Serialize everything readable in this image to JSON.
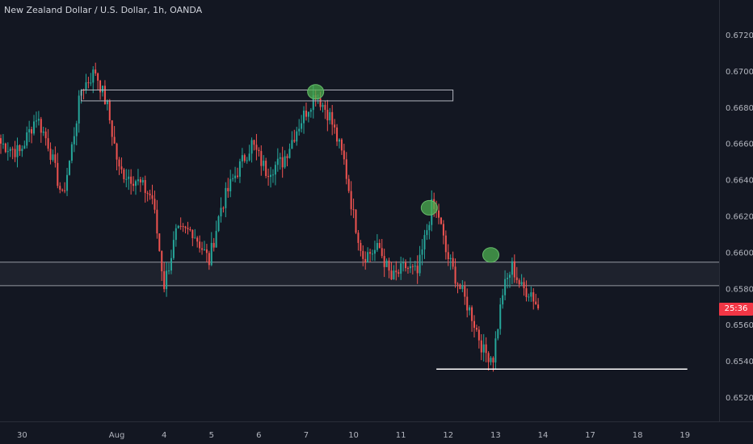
{
  "header": {
    "title": "New Zealand Dollar / U.S. Dollar, 1h, OANDA"
  },
  "current_price": {
    "label": "25:36",
    "price": 0.6569,
    "color": "#f23645"
  },
  "colors": {
    "up": "#26a69a",
    "down": "#ef5350",
    "background": "#131722",
    "axis_text": "#b2b5be",
    "zone_fill": "#1e222d",
    "marker": "#4caf50"
  },
  "chart_data": {
    "type": "candlestick",
    "title": "New Zealand Dollar / U.S. Dollar, 1h, OANDA",
    "ylim": [
      0.651,
      0.6734
    ],
    "y_ticks": [
      "0.67200",
      "0.67000",
      "0.66800",
      "0.66600",
      "0.66400",
      "0.66200",
      "0.66000",
      "0.65800",
      "0.65600",
      "0.65400",
      "0.65200"
    ],
    "y_tick_values": [
      0.672,
      0.67,
      0.668,
      0.666,
      0.664,
      0.662,
      0.66,
      0.658,
      0.656,
      0.654,
      0.652
    ],
    "x_ticks": [
      "30",
      "Aug",
      "4",
      "5",
      "6",
      "7",
      "10",
      "11",
      "12",
      "13",
      "14",
      "17",
      "18",
      "19"
    ],
    "x_tick_bar_index": [
      9,
      49,
      69,
      89,
      109,
      129,
      149,
      169,
      189,
      209,
      229,
      249,
      269,
      289
    ],
    "anchor_path": [
      [
        0,
        0.666
      ],
      [
        8,
        0.6655
      ],
      [
        15,
        0.6675
      ],
      [
        20,
        0.666
      ],
      [
        26,
        0.663
      ],
      [
        29,
        0.665
      ],
      [
        34,
        0.669
      ],
      [
        40,
        0.67
      ],
      [
        45,
        0.668
      ],
      [
        50,
        0.6645
      ],
      [
        57,
        0.664
      ],
      [
        64,
        0.663
      ],
      [
        69,
        0.6582
      ],
      [
        74,
        0.661
      ],
      [
        81,
        0.6612
      ],
      [
        88,
        0.6595
      ],
      [
        93,
        0.6625
      ],
      [
        98,
        0.664
      ],
      [
        106,
        0.666
      ],
      [
        112,
        0.6645
      ],
      [
        119,
        0.665
      ],
      [
        125,
        0.6668
      ],
      [
        133,
        0.6688
      ],
      [
        139,
        0.6675
      ],
      [
        145,
        0.665
      ],
      [
        149,
        0.662
      ],
      [
        153,
        0.6598
      ],
      [
        160,
        0.6602
      ],
      [
        165,
        0.6585
      ],
      [
        171,
        0.6592
      ],
      [
        176,
        0.6588
      ],
      [
        182,
        0.6625
      ],
      [
        185,
        0.662
      ],
      [
        188,
        0.66
      ],
      [
        194,
        0.658
      ],
      [
        199,
        0.6565
      ],
      [
        204,
        0.6545
      ],
      [
        208,
        0.6542
      ],
      [
        212,
        0.6578
      ],
      [
        216,
        0.6592
      ],
      [
        220,
        0.658
      ],
      [
        224,
        0.6578
      ],
      [
        227,
        0.6569
      ]
    ],
    "zone": {
      "top": 0.65945,
      "bottom": 0.65815
    },
    "resistance_box": {
      "start_bar": 34,
      "end_bar": 191,
      "top": 0.66895,
      "bottom": 0.66835
    },
    "support_line": {
      "start_bar": 184,
      "end_bar": 290,
      "y": 0.65355
    },
    "markers": [
      {
        "bar": 133,
        "y": 0.66885
      },
      {
        "bar": 181,
        "y": 0.66245
      },
      {
        "bar": 207,
        "y": 0.65985
      }
    ]
  }
}
